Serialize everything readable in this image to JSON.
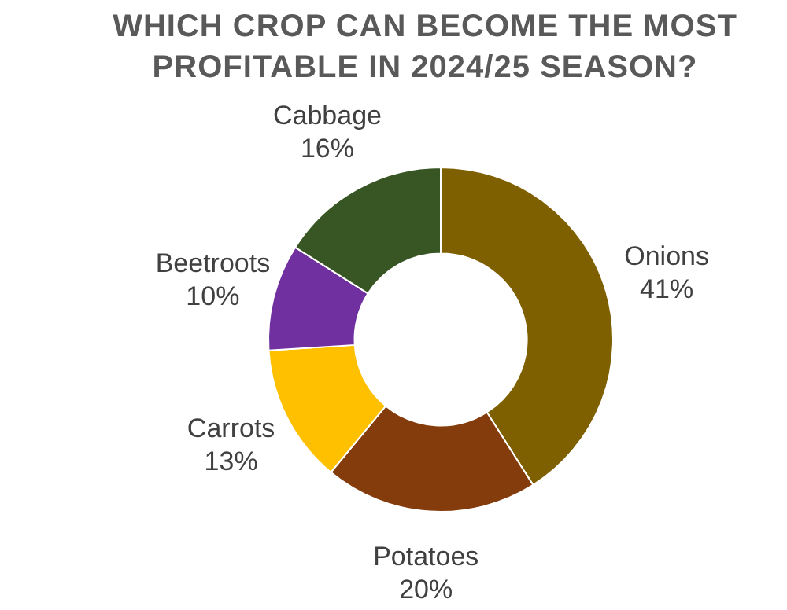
{
  "chart_data": {
    "type": "donut",
    "title": "WHICH CROP CAN BECOME THE MOST PROFITABLE IN 2024/25 SEASON?",
    "categories": [
      "Onions",
      "Potatoes",
      "Carrots",
      "Beetroots",
      "Cabbage"
    ],
    "values": [
      41,
      20,
      13,
      10,
      16
    ],
    "colors": [
      "#7f6000",
      "#843c0c",
      "#ffc000",
      "#7030a0",
      "#375623"
    ],
    "value_labels": [
      "41%",
      "20%",
      "13%",
      "10%",
      "16%"
    ],
    "legend": false
  }
}
